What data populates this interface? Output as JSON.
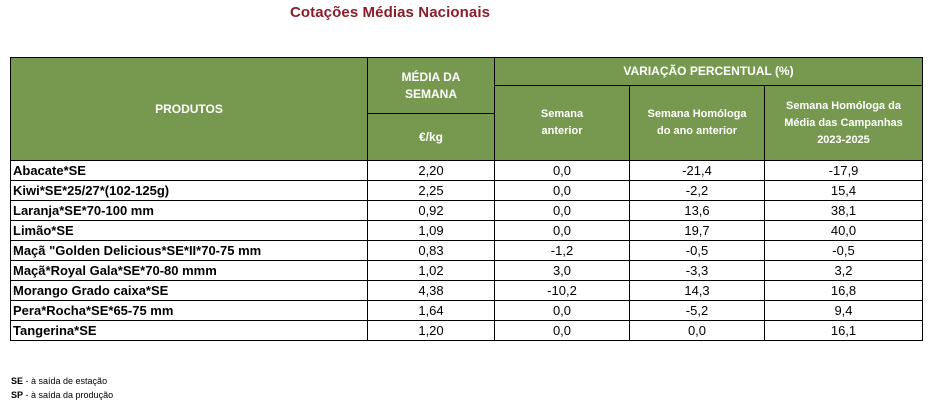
{
  "title": "Cotações Médias Nacionais",
  "headers": {
    "products": "PRODUTOS",
    "avg_week": "MÉDIA DA SEMANA",
    "variation": "VARIAÇÃO PERCENTUAL (%)",
    "unit": "€/kg",
    "prev_week": "Semana anterior",
    "same_week_prev_year": "Semana Homóloga do ano anterior",
    "same_week_avg_campaigns": "Semana Homóloga da Média das Campanhas 2023-2025"
  },
  "rows": [
    {
      "product": "Abacate*SE",
      "price": "2,20",
      "prev_week": "0,0",
      "prev_year": "-21,4",
      "campaigns": "-17,9"
    },
    {
      "product": "Kiwi*SE*25/27*(102-125g)",
      "price": "2,25",
      "prev_week": "0,0",
      "prev_year": "-2,2",
      "campaigns": "15,4"
    },
    {
      "product": "Laranja*SE*70-100 mm",
      "price": "0,92",
      "prev_week": "0,0",
      "prev_year": "13,6",
      "campaigns": "38,1"
    },
    {
      "product": "Limão*SE",
      "price": "1,09",
      "prev_week": "0,0",
      "prev_year": "19,7",
      "campaigns": "40,0"
    },
    {
      "product": "Maçã \"Golden Delicious*SE*II*70-75 mm",
      "price": "0,83",
      "prev_week": "-1,2",
      "prev_year": "-0,5",
      "campaigns": "-0,5"
    },
    {
      "product": "Maçã*Royal Gala*SE*70-80 mmm",
      "price": "1,02",
      "prev_week": "3,0",
      "prev_year": "-3,3",
      "campaigns": "3,2"
    },
    {
      "product": "Morango Grado caixa*SE",
      "price": "4,38",
      "prev_week": "-10,2",
      "prev_year": "14,3",
      "campaigns": "16,8"
    },
    {
      "product": "Pera*Rocha*SE*65-75 mm",
      "price": "1,64",
      "prev_week": "0,0",
      "prev_year": "-5,2",
      "campaigns": "9,4"
    },
    {
      "product": "Tangerina*SE",
      "price": "1,20",
      "prev_week": "0,0",
      "prev_year": "0,0",
      "campaigns": "16,1"
    }
  ],
  "footnotes": [
    {
      "code": "SE",
      "text": " - à saída de estação"
    },
    {
      "code": "SP",
      "text": " - à saída da produção"
    }
  ],
  "colors": {
    "header_bg": "#76994f",
    "title": "#8a1d2b"
  }
}
